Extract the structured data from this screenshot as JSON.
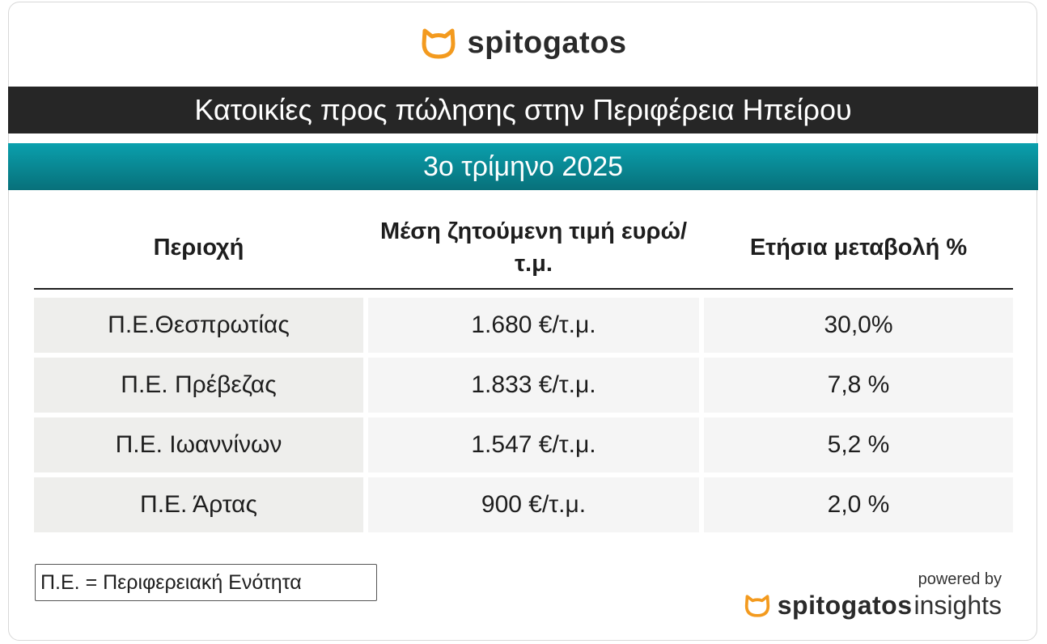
{
  "header": {
    "logo": "spitogatos",
    "title": "Κατοικίες προς πώλησης στην Περιφέρεια Ηπείρου",
    "subtitle": "3ο τρίμηνο 2025"
  },
  "table": {
    "headers": [
      "Περιοχή",
      "Μέση ζητούμενη τιμή ευρώ/τ.μ.",
      "Ετήσια μεταβολή %"
    ],
    "rows": [
      [
        "Π.Ε.Θεσπρωτίας",
        "1.680 €/τ.μ.",
        "30,0%"
      ],
      [
        "Π.Ε. Πρέβεζας",
        "1.833 €/τ.μ.",
        "7,8 %"
      ],
      [
        "Π.Ε. Ιωαννίνων",
        "1.547 €/τ.μ.",
        "5,2 %"
      ],
      [
        "Π.Ε. Άρτας",
        "900 €/τ.μ.",
        "2,0 %"
      ]
    ]
  },
  "footnote": "Π.Ε. = Περιφερειακή Ενότητα",
  "footer": {
    "powered_by": "powered by",
    "brand": "spitogatos",
    "brand_suffix": "insights"
  }
}
